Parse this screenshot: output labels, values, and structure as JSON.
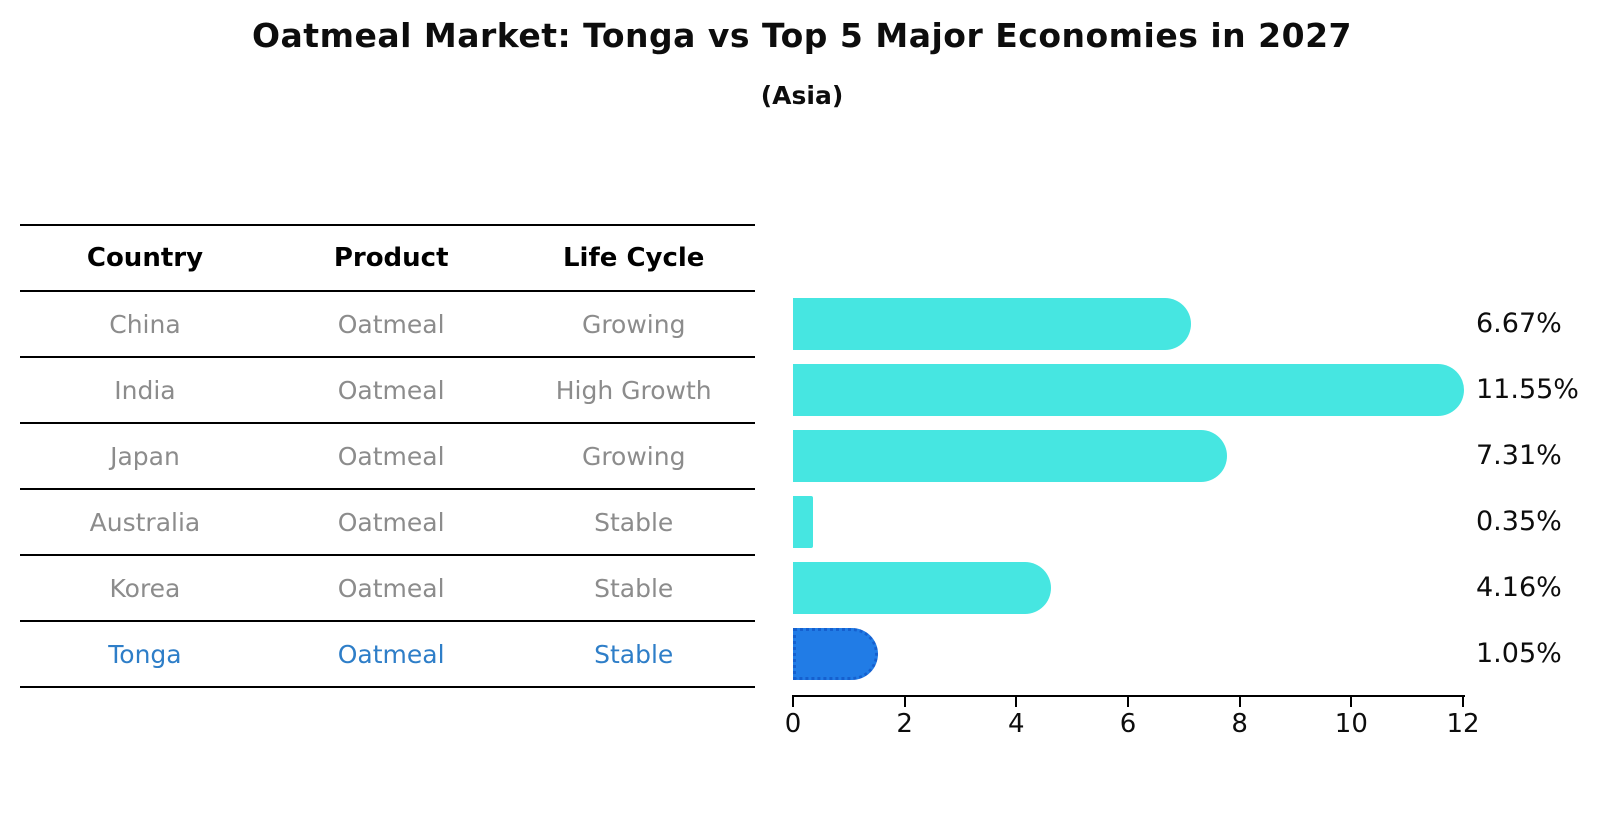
{
  "page": {
    "title": "Oatmeal Market: Tonga vs Top 5 Major Economies in 2027",
    "subtitle": "(Asia)"
  },
  "table": {
    "headers": [
      "Country",
      "Product",
      "Life Cycle"
    ],
    "rows": [
      {
        "country": "China",
        "product": "Oatmeal",
        "life_cycle": "Growing",
        "highlight": false
      },
      {
        "country": "India",
        "product": "Oatmeal",
        "life_cycle": "High Growth",
        "highlight": false
      },
      {
        "country": "Japan",
        "product": "Oatmeal",
        "life_cycle": "Growing",
        "highlight": false
      },
      {
        "country": "Australia",
        "product": "Oatmeal",
        "life_cycle": "Stable",
        "highlight": false
      },
      {
        "country": "Korea",
        "product": "Oatmeal",
        "life_cycle": "Stable",
        "highlight": false
      },
      {
        "country": "Tonga",
        "product": "Oatmeal",
        "life_cycle": "Stable",
        "highlight": true
      }
    ]
  },
  "chart_data": {
    "type": "bar",
    "orientation": "horizontal",
    "title": "Oatmeal Market: Tonga vs Top 5 Major Economies in 2027",
    "subtitle": "(Asia)",
    "categories": [
      "China",
      "India",
      "Japan",
      "Australia",
      "Korea",
      "Tonga"
    ],
    "values": [
      6.67,
      11.55,
      7.31,
      0.35,
      4.16,
      1.05
    ],
    "value_labels": [
      "6.67%",
      "11.55%",
      "7.31%",
      "0.35%",
      "4.16%",
      "1.05%"
    ],
    "xlabel": "",
    "ylabel": "",
    "xlim": [
      0,
      12
    ],
    "xticks": [
      0,
      2,
      4,
      6,
      8,
      10,
      12
    ],
    "grid": false,
    "legend": false,
    "bar_color": "#46e6e1",
    "highlight_index": 5,
    "highlight_color": "#217ce6",
    "highlight_border_color": "#1560cf",
    "highlight_text_color": "#2e7ec8",
    "row_text_color": "#8c8c8c"
  }
}
